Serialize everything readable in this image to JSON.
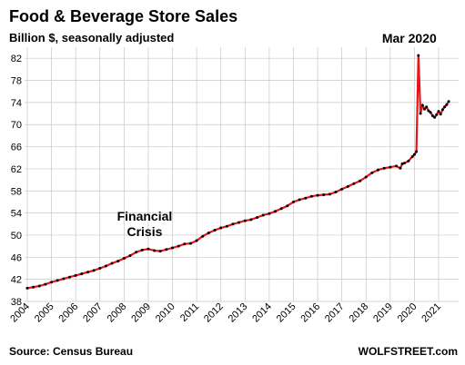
{
  "chart_data": {
    "type": "line",
    "title": "Food & Beverage Store Sales",
    "subtitle": "Billion $, seasonally adjusted",
    "source": "Source: Census Bureau",
    "brand": "WOLFSTREET.com",
    "ylim": [
      38,
      84
    ],
    "yticks": [
      38,
      42,
      46,
      50,
      54,
      58,
      62,
      66,
      70,
      74,
      78,
      82
    ],
    "xticks": [
      "2004",
      "2005",
      "2006",
      "2007",
      "2008",
      "2009",
      "2010",
      "2011",
      "2012",
      "2013",
      "2014",
      "2015",
      "2016",
      "2017",
      "2018",
      "2019",
      "2020",
      "2021"
    ],
    "grid": true,
    "line_color": "#e8141a",
    "marker_color": "#000000",
    "annotations": [
      {
        "text_lines": [
          "Financial",
          "Crisis"
        ],
        "date": "2009-01"
      },
      {
        "text_lines": [
          "Mar 2020"
        ],
        "date": "2020-03"
      }
    ],
    "series": [
      {
        "x": [
          "2004-01",
          "2004-04",
          "2004-07",
          "2004-10",
          "2005-01",
          "2005-04",
          "2005-07",
          "2005-10",
          "2006-01",
          "2006-04",
          "2006-07",
          "2006-10",
          "2007-01",
          "2007-04",
          "2007-07",
          "2007-10",
          "2008-01",
          "2008-04",
          "2008-07",
          "2008-10",
          "2009-01",
          "2009-04",
          "2009-07",
          "2009-10",
          "2010-01",
          "2010-04",
          "2010-07",
          "2010-10",
          "2011-01",
          "2011-04",
          "2011-07",
          "2011-10",
          "2012-01",
          "2012-04",
          "2012-07",
          "2012-10",
          "2013-01",
          "2013-04",
          "2013-07",
          "2013-10",
          "2014-01",
          "2014-04",
          "2014-07",
          "2014-10",
          "2015-01",
          "2015-04",
          "2015-07",
          "2015-10",
          "2016-01",
          "2016-04",
          "2016-07",
          "2016-10",
          "2017-01",
          "2017-04",
          "2017-07",
          "2017-10",
          "2018-01",
          "2018-04",
          "2018-07",
          "2018-10",
          "2019-01",
          "2019-04",
          "2019-06",
          "2019-07",
          "2019-08",
          "2019-10",
          "2019-12",
          "2020-01",
          "2020-02",
          "2020-03",
          "2020-04",
          "2020-05",
          "2020-06",
          "2020-07",
          "2020-08",
          "2020-09",
          "2020-10",
          "2020-11",
          "2020-12",
          "2021-01",
          "2021-02",
          "2021-03",
          "2021-04",
          "2021-05",
          "2021-06"
        ],
        "values": [
          40.4,
          40.6,
          40.8,
          41.1,
          41.5,
          41.8,
          42.1,
          42.4,
          42.7,
          43.0,
          43.3,
          43.6,
          44.0,
          44.4,
          44.9,
          45.3,
          45.8,
          46.3,
          46.9,
          47.3,
          47.5,
          47.2,
          47.1,
          47.4,
          47.7,
          48.0,
          48.4,
          48.5,
          49.0,
          49.8,
          50.4,
          50.9,
          51.3,
          51.6,
          52.0,
          52.3,
          52.6,
          52.8,
          53.2,
          53.6,
          53.9,
          54.3,
          54.8,
          55.3,
          56.0,
          56.4,
          56.7,
          57.0,
          57.2,
          57.3,
          57.4,
          57.8,
          58.3,
          58.8,
          59.3,
          59.8,
          60.5,
          61.3,
          61.8,
          62.1,
          62.3,
          62.5,
          62.1,
          62.9,
          63.0,
          63.4,
          64.2,
          64.6,
          65.1,
          82.5,
          72.0,
          73.5,
          72.8,
          73.2,
          72.5,
          72.2,
          71.6,
          71.3,
          71.8,
          72.4,
          71.9,
          72.7,
          73.2,
          73.6,
          74.2
        ]
      }
    ]
  }
}
